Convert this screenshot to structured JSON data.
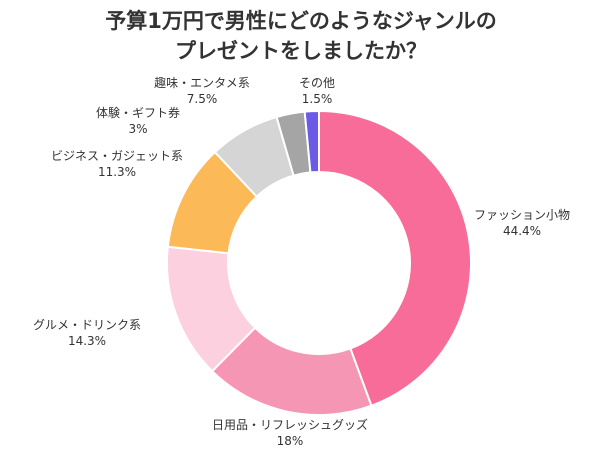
{
  "title_line1": "予算1万円で男性にどのようなジャンルの",
  "title_line2": "プレゼントをしましたか？",
  "chart_data": {
    "type": "pie",
    "subtype": "donut",
    "title": "予算1万円で男性にどのようなジャンルのプレゼントをしましたか？",
    "legend": "none",
    "slices": [
      {
        "label": "ファッション小物",
        "value": 44.4,
        "value_label": "44.4%",
        "color": "#f76c98"
      },
      {
        "label": "日用品・リフレッシュグッズ",
        "value": 18,
        "value_label": "18%",
        "color": "#f596b4"
      },
      {
        "label": "グルメ・ドリンク系",
        "value": 14.3,
        "value_label": "14.3%",
        "color": "#fcd0de"
      },
      {
        "label": "ビジネス・ガジェット系",
        "value": 11.3,
        "value_label": "11.3%",
        "color": "#fcb957"
      },
      {
        "label": "体験・ギフト券",
        "value": 3,
        "value_label": "3%",
        "color": "#dcdcdc"
      },
      {
        "label": "趣味・エンタメ系",
        "value": 7.5,
        "value_label": "7.5%",
        "color": "#d5d5d5"
      },
      {
        "label": "その他",
        "value": 1.5,
        "value_label": "1.5%",
        "color": "#6b5ae6"
      }
    ]
  }
}
